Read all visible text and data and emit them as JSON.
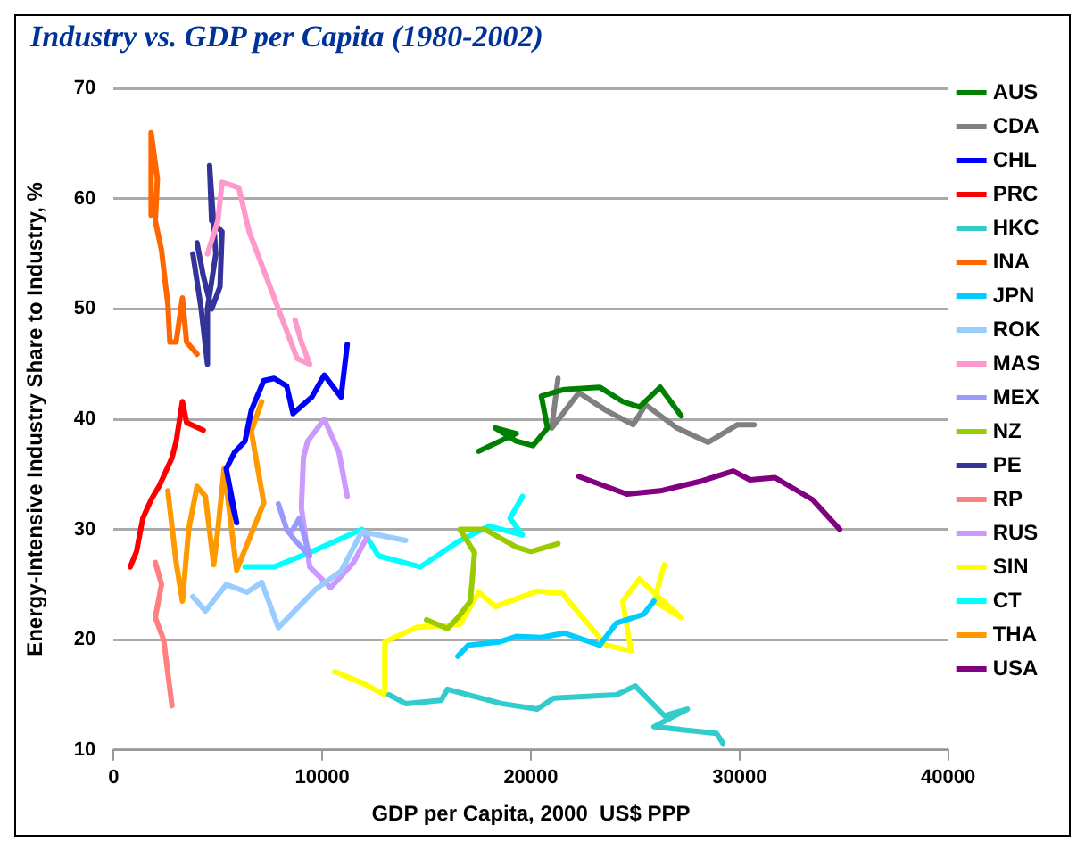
{
  "chart_data": {
    "type": "line",
    "title": "Industry vs. GDP per Capita (1980-2002)",
    "xlabel": "GDP per Capita, 2000  US$ PPP",
    "ylabel": "Energy-Intensive Industry Share to Industry, %",
    "xlim": [
      0,
      40000
    ],
    "ylim": [
      10,
      70
    ],
    "xticks": [
      0,
      10000,
      20000,
      30000,
      40000
    ],
    "yticks": [
      10,
      20,
      30,
      40,
      50,
      60,
      70
    ],
    "grid": "y",
    "legend": "right",
    "marker": "none",
    "line_style": "solid",
    "series": [
      {
        "name": "AUS",
        "color": "#008000",
        "x": [
          17500,
          19300,
          18300,
          19300,
          20100,
          20800,
          20500,
          21600,
          23300,
          24400,
          25200,
          26200,
          27200
        ],
        "values": [
          37.1,
          38.7,
          39.2,
          38,
          37.6,
          39.2,
          42.1,
          42.7,
          42.9,
          41.6,
          41.1,
          42.9,
          40.3
        ]
      },
      {
        "name": "CDA",
        "color": "#808080",
        "x": [
          21300,
          21000,
          22300,
          23600,
          24900,
          25500,
          27000,
          28500,
          29900,
          30700
        ],
        "values": [
          43.7,
          39.2,
          42.4,
          40.8,
          39.5,
          41.3,
          39.2,
          37.9,
          39.5,
          39.5
        ]
      },
      {
        "name": "CHL",
        "color": "#0000ff",
        "x": [
          5600,
          5900,
          5400,
          5800,
          6300,
          6600,
          7200,
          7700,
          8300,
          8600,
          9500,
          10100,
          10900,
          11200
        ],
        "values": [
          33,
          30.6,
          35.5,
          37,
          38,
          40.8,
          43.5,
          43.7,
          43,
          40.5,
          42,
          44,
          42,
          46.8
        ]
      },
      {
        "name": "PRC",
        "color": "#ff0000",
        "x": [
          800,
          1100,
          1400,
          1800,
          2200,
          2800,
          3000,
          3300,
          3500,
          4300
        ],
        "values": [
          26.6,
          28,
          31,
          32.7,
          34,
          36.5,
          38,
          41.6,
          39.7,
          39
        ]
      },
      {
        "name": "HKC",
        "color": "#33cccc",
        "x": [
          13200,
          14000,
          15700,
          16000,
          18600,
          20300,
          21100,
          24100,
          25000,
          26400,
          27500,
          25900,
          28900,
          29200
        ],
        "values": [
          15,
          14.2,
          14.5,
          15.5,
          14.2,
          13.7,
          14.7,
          15,
          15.8,
          13.1,
          13.7,
          12.1,
          11.5,
          10.6
        ]
      },
      {
        "name": "INA",
        "color": "#ff6600",
        "x": [
          1800,
          1800,
          2100,
          2000,
          2300,
          2500,
          2600,
          2700,
          3000,
          3300,
          3500,
          4000
        ],
        "values": [
          58.5,
          66,
          61.8,
          58,
          55.3,
          52,
          50.5,
          47,
          47,
          51,
          47,
          45.9
        ]
      },
      {
        "name": "JPN",
        "color": "#00ccff",
        "x": [
          16500,
          17000,
          18500,
          19300,
          20500,
          21600,
          23300,
          24100,
          25400,
          25900
        ],
        "values": [
          18.5,
          19.5,
          19.8,
          20.3,
          20.2,
          20.6,
          19.5,
          21.5,
          22.3,
          23.5
        ]
      },
      {
        "name": "ROK",
        "color": "#99ccff",
        "x": [
          3800,
          4400,
          5400,
          6400,
          7100,
          7900,
          9700,
          10900,
          11900,
          14000
        ],
        "values": [
          23.9,
          22.6,
          25,
          24.3,
          25.2,
          21.1,
          24.6,
          26.2,
          29.8,
          29
        ]
      },
      {
        "name": "MAS",
        "color": "#ff99cc",
        "x": [
          4500,
          5000,
          5200,
          6000,
          6500,
          7500,
          8300,
          8800,
          9400,
          9000,
          8700
        ],
        "values": [
          55,
          58,
          61.5,
          61,
          57,
          52,
          48,
          45.5,
          45,
          47,
          49
        ]
      },
      {
        "name": "MEX",
        "color": "#9999ff",
        "x": [
          7900,
          8300,
          8700,
          9400,
          8900,
          8600
        ],
        "values": [
          32.3,
          30,
          29,
          27.6,
          31,
          30
        ]
      },
      {
        "name": "NZ",
        "color": "#99cc00",
        "x": [
          15000,
          16000,
          16500,
          17100,
          17300,
          16600,
          17800,
          19300,
          20000,
          21300
        ],
        "values": [
          21.8,
          21,
          22,
          23.5,
          27.9,
          30,
          30,
          28.4,
          28,
          28.7
        ]
      },
      {
        "name": "PE",
        "color": "#333399",
        "x": [
          3800,
          4200,
          4500,
          4500,
          4900,
          4600,
          4700,
          5200,
          5100,
          4700,
          4300,
          4000
        ],
        "values": [
          55,
          50,
          45,
          50,
          55,
          63,
          58,
          57,
          52,
          50,
          53,
          56
        ]
      },
      {
        "name": "RP",
        "color": "#ff8080",
        "x": [
          2000,
          2300,
          2000,
          2400,
          2600,
          2800
        ],
        "values": [
          27,
          25,
          22,
          20,
          17,
          14
        ]
      },
      {
        "name": "RUS",
        "color": "#cc99ff",
        "x": [
          11200,
          10800,
          10100,
          9300,
          9100,
          9000,
          9400,
          10400,
          11500,
          12200
        ],
        "values": [
          33,
          37,
          40,
          38,
          36.5,
          32,
          26.6,
          24.7,
          27,
          29.5
        ]
      },
      {
        "name": "SIN",
        "color": "#ffff00",
        "x": [
          10600,
          12000,
          13000,
          13000,
          14500,
          16600,
          17500,
          18300,
          20300,
          21500,
          23600,
          24800,
          24400,
          25200,
          27200,
          25900,
          26400
        ],
        "values": [
          17.1,
          16,
          15,
          19.8,
          21.1,
          21.4,
          24.3,
          23,
          24.4,
          24.2,
          19.5,
          19,
          23.5,
          25.5,
          22,
          23.5,
          26.8
        ]
      },
      {
        "name": "CT",
        "color": "#00ffff",
        "x": [
          6300,
          7700,
          9400,
          11900,
          12700,
          14700,
          16600,
          18000,
          19600,
          19000,
          19600
        ],
        "values": [
          26.6,
          26.6,
          27.9,
          30,
          27.6,
          26.6,
          29,
          30.3,
          29.5,
          31,
          33
        ]
      },
      {
        "name": "THA",
        "color": "#ff9900",
        "x": [
          2600,
          3000,
          3300,
          3600,
          4000,
          4400,
          4800,
          5000,
          5300,
          5900,
          7200,
          6600,
          7100
        ],
        "values": [
          33.5,
          27,
          23.5,
          30,
          33.9,
          33,
          26.8,
          30,
          35.5,
          26.3,
          32.4,
          38.9,
          41.6
        ]
      },
      {
        "name": "USA",
        "color": "#800080",
        "x": [
          22300,
          24600,
          26200,
          28200,
          29700,
          30500,
          31700,
          33500,
          34800
        ],
        "values": [
          34.8,
          33.2,
          33.5,
          34.4,
          35.3,
          34.5,
          34.7,
          32.7,
          30
        ]
      }
    ]
  }
}
